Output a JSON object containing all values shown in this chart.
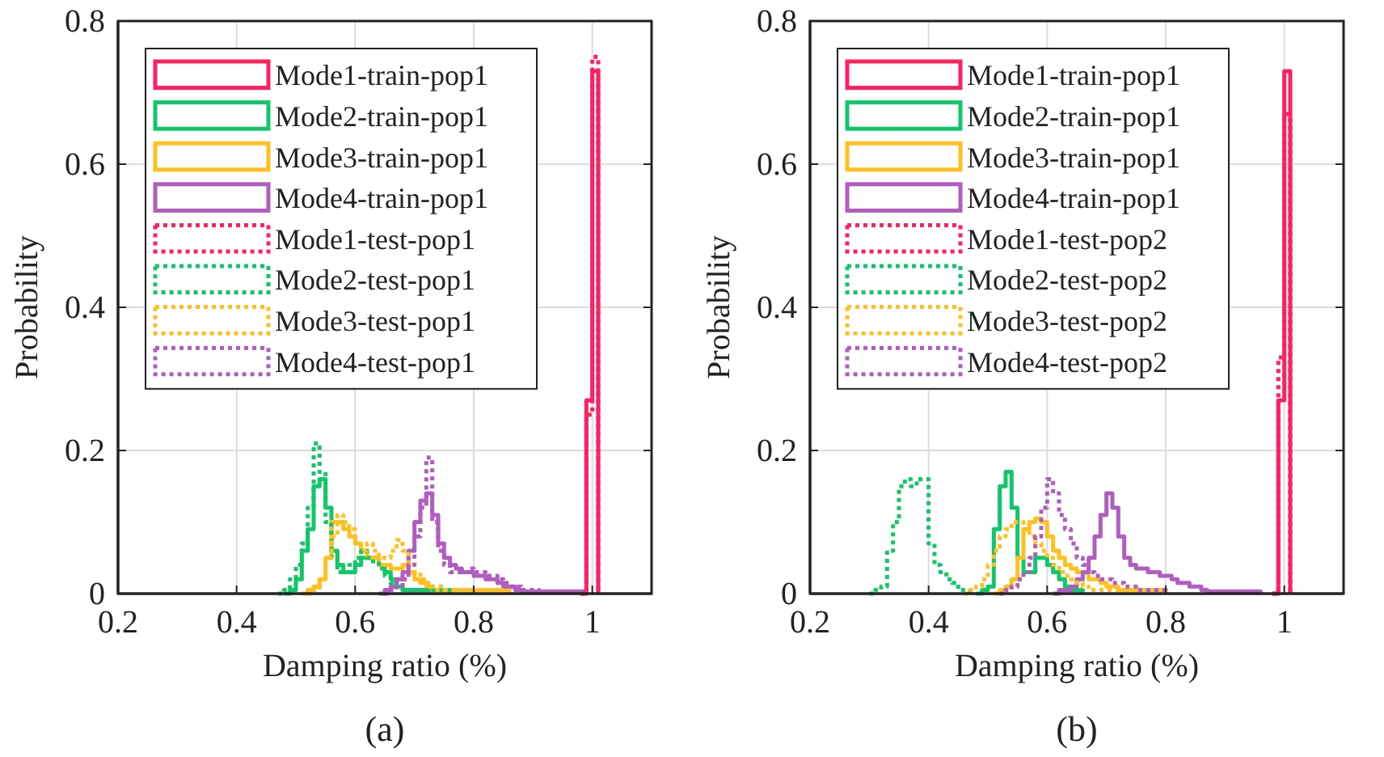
{
  "chart_data": [
    {
      "type": "step",
      "xlabel": "Damping ratio (%)",
      "ylabel": "Probability",
      "xlim": [
        0.2,
        1.1
      ],
      "xticks": [
        0.2,
        0.4,
        0.6,
        0.8,
        1
      ],
      "ylim": [
        0,
        0.8
      ],
      "yticks": [
        0,
        0.2,
        0.4,
        0.6,
        0.8
      ],
      "grid": true,
      "legend": "top left",
      "annotations": [
        "(a)"
      ],
      "series": [
        {
          "name": "Mode1-train-pop1",
          "color": "#ff2060",
          "line_style": "solid",
          "x": [
            0.98,
            0.99,
            1,
            1.01
          ],
          "values": [
            0,
            0.27,
            0.73,
            0
          ]
        },
        {
          "name": "Mode2-train-pop1",
          "color": "#10c868",
          "line_style": "solid",
          "x": [
            0.48,
            0.49,
            0.5,
            0.51,
            0.52,
            0.53,
            0.54,
            0.55,
            0.56,
            0.57,
            0.58,
            0.59,
            0.6,
            0.61,
            0.62,
            0.63,
            0.64,
            0.65,
            0.66,
            0.67,
            0.68,
            0.69,
            0.7,
            0.71,
            0.72,
            0.73,
            0.74,
            0.75,
            0.76
          ],
          "values": [
            0,
            0.005,
            0.02,
            0.06,
            0.09,
            0.15,
            0.16,
            0.12,
            0.06,
            0.04,
            0.03,
            0.03,
            0.04,
            0.05,
            0.05,
            0.05,
            0.04,
            0.03,
            0.02,
            0.01,
            0.005,
            0.005,
            0.005,
            0.005,
            0.005,
            0.005,
            0.005,
            0.005,
            0
          ]
        },
        {
          "name": "Mode3-train-pop1",
          "color": "#ffc020",
          "line_style": "solid",
          "x": [
            0.51,
            0.52,
            0.53,
            0.54,
            0.55,
            0.56,
            0.57,
            0.58,
            0.59,
            0.6,
            0.61,
            0.62,
            0.63,
            0.64,
            0.65,
            0.66,
            0.67,
            0.68,
            0.69,
            0.7,
            0.71,
            0.72,
            0.73,
            0.74,
            0.75,
            0.76,
            0.77,
            0.78,
            0.79,
            0.8,
            0.81,
            0.82,
            0.83,
            0.84,
            0.85,
            0.86
          ],
          "values": [
            0,
            0.005,
            0.01,
            0.02,
            0.05,
            0.1,
            0.1,
            0.09,
            0.08,
            0.07,
            0.06,
            0.05,
            0.05,
            0.04,
            0.04,
            0.035,
            0.035,
            0.04,
            0.03,
            0.02,
            0.015,
            0.01,
            0.005,
            0.005,
            0.005,
            0.005,
            0.005,
            0.005,
            0.005,
            0.005,
            0.005,
            0.005,
            0.005,
            0.005,
            0.005,
            0
          ]
        },
        {
          "name": "Mode4-train-pop1",
          "color": "#b05cc0",
          "line_style": "solid",
          "x": [
            0.64,
            0.65,
            0.66,
            0.67,
            0.68,
            0.69,
            0.7,
            0.71,
            0.72,
            0.73,
            0.74,
            0.75,
            0.76,
            0.77,
            0.78,
            0.79,
            0.8,
            0.81,
            0.82,
            0.83,
            0.84,
            0.85,
            0.86,
            0.87,
            0.88,
            0.89,
            0.9,
            0.91,
            0.92,
            0.93,
            0.94,
            0.95,
            0.96,
            0.97,
            0.98,
            0.99
          ],
          "values": [
            0,
            0.005,
            0.01,
            0.02,
            0.03,
            0.06,
            0.1,
            0.13,
            0.14,
            0.11,
            0.07,
            0.05,
            0.04,
            0.035,
            0.03,
            0.03,
            0.025,
            0.025,
            0.02,
            0.02,
            0.015,
            0.01,
            0.01,
            0.005,
            0.003,
            0.003,
            0.003,
            0.003,
            0.003,
            0.003,
            0.003,
            0.003,
            0.003,
            0.003,
            0.003,
            0
          ]
        },
        {
          "name": "Mode1-test-pop1",
          "color": "#ff2060",
          "line_style": "dotted",
          "x": [
            0.98,
            0.99,
            1,
            1.01
          ],
          "values": [
            0,
            0.25,
            0.75,
            0
          ]
        },
        {
          "name": "Mode2-test-pop1",
          "color": "#10c868",
          "line_style": "dotted",
          "x": [
            0.47,
            0.48,
            0.49,
            0.5,
            0.51,
            0.52,
            0.53,
            0.54,
            0.55,
            0.56,
            0.57,
            0.58,
            0.59,
            0.6,
            0.61,
            0.62,
            0.63,
            0.64,
            0.65,
            0.66,
            0.67,
            0.68,
            0.69,
            0.7,
            0.71,
            0.72,
            0.73,
            0.74,
            0.75,
            0.76
          ],
          "values": [
            0,
            0.005,
            0.02,
            0.04,
            0.07,
            0.12,
            0.21,
            0.17,
            0.1,
            0.05,
            0.03,
            0.03,
            0.04,
            0.05,
            0.06,
            0.05,
            0.045,
            0.035,
            0.025,
            0.015,
            0.01,
            0.005,
            0.005,
            0.005,
            0.005,
            0.005,
            0.005,
            0.005,
            0.005,
            0
          ]
        },
        {
          "name": "Mode3-test-pop1",
          "color": "#ffc020",
          "line_style": "dotted",
          "x": [
            0.52,
            0.53,
            0.54,
            0.55,
            0.56,
            0.57,
            0.58,
            0.59,
            0.6,
            0.61,
            0.62,
            0.63,
            0.64,
            0.65,
            0.66,
            0.67,
            0.68,
            0.69,
            0.7,
            0.71,
            0.72,
            0.73,
            0.74,
            0.75,
            0.76,
            0.77,
            0.78,
            0.79,
            0.8,
            0.81,
            0.82,
            0.83,
            0.84,
            0.85,
            0.86
          ],
          "values": [
            0,
            0.005,
            0.02,
            0.05,
            0.08,
            0.11,
            0.1,
            0.09,
            0.07,
            0.06,
            0.07,
            0.06,
            0.05,
            0.05,
            0.06,
            0.075,
            0.06,
            0.04,
            0.03,
            0.02,
            0.015,
            0.01,
            0.01,
            0.005,
            0.005,
            0.005,
            0.005,
            0.005,
            0.005,
            0.005,
            0.005,
            0.005,
            0.005,
            0.005,
            0
          ]
        },
        {
          "name": "Mode4-test-pop1",
          "color": "#b05cc0",
          "line_style": "dotted",
          "x": [
            0.65,
            0.66,
            0.67,
            0.68,
            0.69,
            0.7,
            0.71,
            0.72,
            0.73,
            0.74,
            0.75,
            0.76,
            0.77,
            0.78,
            0.79,
            0.8,
            0.81,
            0.82,
            0.83,
            0.84,
            0.85,
            0.86,
            0.87,
            0.88,
            0.89,
            0.9,
            0.91
          ],
          "values": [
            0,
            0.005,
            0.01,
            0.02,
            0.04,
            0.08,
            0.12,
            0.19,
            0.1,
            0.06,
            0.04,
            0.03,
            0.03,
            0.03,
            0.035,
            0.03,
            0.03,
            0.025,
            0.025,
            0.02,
            0.015,
            0.01,
            0.01,
            0.005,
            0.005,
            0.005,
            0
          ]
        }
      ]
    },
    {
      "type": "step",
      "xlabel": "Damping ratio (%)",
      "ylabel": "Probability",
      "xlim": [
        0.2,
        1.1
      ],
      "xticks": [
        0.2,
        0.4,
        0.6,
        0.8,
        1
      ],
      "ylim": [
        0,
        0.8
      ],
      "yticks": [
        0,
        0.2,
        0.4,
        0.6,
        0.8
      ],
      "grid": true,
      "legend": "top left",
      "annotations": [
        "(b)"
      ],
      "series": [
        {
          "name": "Mode1-train-pop1",
          "color": "#ff2060",
          "line_style": "solid",
          "x": [
            0.98,
            0.99,
            1,
            1.01
          ],
          "values": [
            0,
            0.27,
            0.73,
            0
          ]
        },
        {
          "name": "Mode2-train-pop1",
          "color": "#10c868",
          "line_style": "solid",
          "x": [
            0.48,
            0.49,
            0.5,
            0.51,
            0.52,
            0.53,
            0.54,
            0.55,
            0.56,
            0.57,
            0.58,
            0.59,
            0.6,
            0.61,
            0.62,
            0.63,
            0.64,
            0.65,
            0.66
          ],
          "values": [
            0,
            0.005,
            0.01,
            0.09,
            0.15,
            0.17,
            0.12,
            0.05,
            0.03,
            0.03,
            0.05,
            0.05,
            0.04,
            0.03,
            0.02,
            0.01,
            0.005,
            0.005,
            0
          ]
        },
        {
          "name": "Mode3-train-pop1",
          "color": "#ffc020",
          "line_style": "solid",
          "x": [
            0.51,
            0.52,
            0.53,
            0.54,
            0.55,
            0.56,
            0.57,
            0.58,
            0.59,
            0.6,
            0.61,
            0.62,
            0.63,
            0.64,
            0.65,
            0.66,
            0.67,
            0.68,
            0.69,
            0.7,
            0.71,
            0.72,
            0.73,
            0.74,
            0.75,
            0.76,
            0.77,
            0.78,
            0.79,
            0.8
          ],
          "values": [
            0,
            0.005,
            0.01,
            0.02,
            0.05,
            0.09,
            0.1,
            0.105,
            0.1,
            0.08,
            0.06,
            0.05,
            0.04,
            0.035,
            0.03,
            0.03,
            0.02,
            0.02,
            0.015,
            0.01,
            0.01,
            0.005,
            0.005,
            0.005,
            0.005,
            0.005,
            0.005,
            0.005,
            0.005,
            0
          ]
        },
        {
          "name": "Mode4-train-pop1",
          "color": "#b05cc0",
          "line_style": "solid",
          "x": [
            0.61,
            0.62,
            0.63,
            0.64,
            0.65,
            0.66,
            0.67,
            0.68,
            0.69,
            0.7,
            0.71,
            0.72,
            0.73,
            0.74,
            0.75,
            0.76,
            0.77,
            0.78,
            0.79,
            0.8,
            0.81,
            0.82,
            0.83,
            0.84,
            0.85,
            0.86,
            0.87,
            0.88,
            0.89,
            0.9,
            0.91,
            0.92,
            0.93,
            0.94,
            0.95,
            0.96
          ],
          "values": [
            0,
            0.005,
            0.005,
            0.01,
            0.02,
            0.03,
            0.05,
            0.08,
            0.11,
            0.14,
            0.12,
            0.08,
            0.05,
            0.04,
            0.035,
            0.035,
            0.03,
            0.03,
            0.025,
            0.025,
            0.02,
            0.015,
            0.015,
            0.01,
            0.01,
            0.005,
            0.003,
            0.003,
            0.003,
            0.003,
            0.003,
            0.003,
            0.003,
            0.003,
            0.003,
            0
          ]
        },
        {
          "name": "Mode1-test-pop2",
          "color": "#ff2060",
          "line_style": "dotted",
          "x": [
            0.98,
            0.99,
            1,
            1.01
          ],
          "values": [
            0,
            0.33,
            0.67,
            0
          ]
        },
        {
          "name": "Mode2-test-pop2",
          "color": "#10c868",
          "line_style": "dotted",
          "x": [
            0.3,
            0.31,
            0.32,
            0.33,
            0.34,
            0.35,
            0.36,
            0.37,
            0.38,
            0.39,
            0.4,
            0.41,
            0.42,
            0.43,
            0.44,
            0.45,
            0.46,
            0.47
          ],
          "values": [
            0,
            0.005,
            0.01,
            0.06,
            0.1,
            0.15,
            0.16,
            0.15,
            0.16,
            0.16,
            0.07,
            0.04,
            0.03,
            0.02,
            0.015,
            0.005,
            0.005,
            0
          ]
        },
        {
          "name": "Mode3-test-pop2",
          "color": "#ffc020",
          "line_style": "dotted",
          "x": [
            0.46,
            0.47,
            0.48,
            0.49,
            0.5,
            0.51,
            0.52,
            0.53,
            0.54,
            0.55,
            0.56,
            0.57,
            0.58,
            0.59,
            0.6,
            0.61,
            0.62,
            0.63,
            0.64,
            0.65,
            0.66,
            0.67,
            0.68,
            0.69,
            0.7,
            0.71,
            0.72,
            0.73,
            0.74,
            0.75
          ],
          "values": [
            0,
            0.005,
            0.01,
            0.02,
            0.04,
            0.06,
            0.08,
            0.09,
            0.1,
            0.1,
            0.09,
            0.08,
            0.07,
            0.06,
            0.05,
            0.04,
            0.03,
            0.025,
            0.02,
            0.015,
            0.01,
            0.005,
            0.005,
            0.005,
            0.005,
            0.005,
            0.005,
            0.005,
            0.005,
            0
          ]
        },
        {
          "name": "Mode4-test-pop2",
          "color": "#b05cc0",
          "line_style": "dotted",
          "x": [
            0.52,
            0.53,
            0.54,
            0.55,
            0.56,
            0.57,
            0.58,
            0.59,
            0.6,
            0.61,
            0.62,
            0.63,
            0.64,
            0.65,
            0.66,
            0.67,
            0.68,
            0.69,
            0.7,
            0.71,
            0.72,
            0.73,
            0.74,
            0.75,
            0.76,
            0.77,
            0.78,
            0.79,
            0.8
          ],
          "values": [
            0,
            0.005,
            0.01,
            0.02,
            0.03,
            0.05,
            0.08,
            0.12,
            0.16,
            0.14,
            0.11,
            0.09,
            0.07,
            0.05,
            0.04,
            0.03,
            0.025,
            0.02,
            0.02,
            0.015,
            0.015,
            0.01,
            0.01,
            0.005,
            0.005,
            0.005,
            0.005,
            0.005,
            0
          ]
        }
      ]
    }
  ]
}
